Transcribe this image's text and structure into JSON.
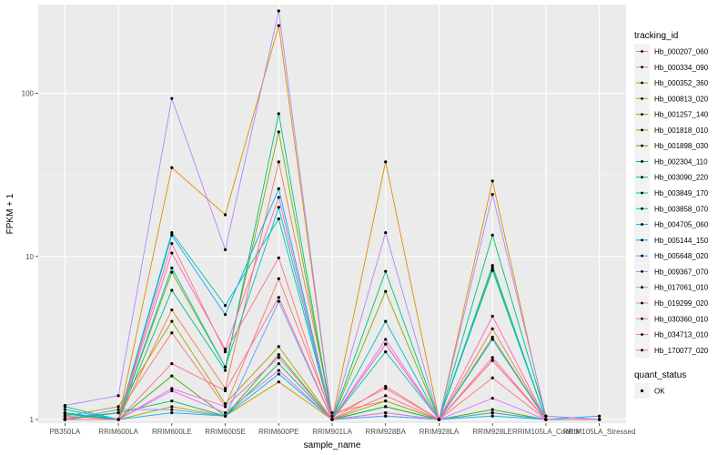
{
  "chart_data": {
    "type": "line",
    "xlabel": "sample_name",
    "ylabel": "FPKM + 1",
    "y_scale": "log10",
    "ylim": [
      0.95,
      350
    ],
    "y_ticks": [
      {
        "value": 1,
        "label": "1"
      },
      {
        "value": 10,
        "label": "10"
      },
      {
        "value": 100,
        "label": "100"
      }
    ],
    "categories": [
      "PB350LA",
      "RRIM600LA",
      "RRIM600LE",
      "RRIM600SE",
      "RRIM600PE",
      "RRIM901LA",
      "RRIM928BA",
      "RRIM928LA",
      "RRIM928LE",
      "RRIM105LA_Control",
      "RRIM105LA_Stressed"
    ],
    "legend": {
      "title": "tracking_id",
      "position": "right"
    },
    "legend2": {
      "title": "quant_status",
      "entries": [
        "OK"
      ]
    },
    "series": [
      {
        "name": "Hb_000207_060",
        "color": "#F8766D",
        "values": [
          1.02,
          1.1,
          3.4,
          1.2,
          7.3,
          1.05,
          1.55,
          1.0,
          1.8,
          1.0,
          1.0
        ]
      },
      {
        "name": "Hb_000334_090",
        "color": "#EE7F40",
        "values": [
          1.05,
          1.0,
          4.7,
          1.55,
          38.0,
          1.1,
          1.3,
          1.0,
          3.6,
          1.0,
          1.0
        ]
      },
      {
        "name": "Hb_000352_360",
        "color": "#E08B00",
        "values": [
          1.0,
          1.0,
          35.0,
          18.0,
          260.0,
          1.0,
          38.0,
          1.0,
          29.0,
          1.0,
          1.0
        ]
      },
      {
        "name": "Hb_000813_020",
        "color": "#C99800",
        "values": [
          1.0,
          1.0,
          1.2,
          1.05,
          1.7,
          1.0,
          1.1,
          1.0,
          1.1,
          1.0,
          1.0
        ]
      },
      {
        "name": "Hb_001257_140",
        "color": "#A3A500",
        "values": [
          1.05,
          1.2,
          4.0,
          1.25,
          2.8,
          1.0,
          1.3,
          1.0,
          3.2,
          1.0,
          1.0
        ]
      },
      {
        "name": "Hb_001818_010",
        "color": "#7CAE00",
        "values": [
          1.0,
          1.0,
          8.0,
          2.1,
          58.0,
          1.0,
          6.1,
          1.0,
          8.5,
          1.0,
          1.0
        ]
      },
      {
        "name": "Hb_001898_030",
        "color": "#39B600",
        "values": [
          1.1,
          1.0,
          1.85,
          1.05,
          2.5,
          1.0,
          1.2,
          1.0,
          1.15,
          1.0,
          1.0
        ]
      },
      {
        "name": "Hb_002304_110",
        "color": "#00BB4E",
        "values": [
          1.0,
          1.1,
          1.3,
          1.05,
          2.2,
          1.0,
          1.2,
          1.0,
          1.1,
          1.0,
          1.0
        ]
      },
      {
        "name": "Hb_003090_220",
        "color": "#00BF7D",
        "values": [
          1.08,
          1.0,
          6.2,
          2.0,
          75.0,
          1.0,
          8.1,
          1.0,
          13.5,
          1.05,
          1.0
        ]
      },
      {
        "name": "Hb_003849_170",
        "color": "#00C1A3",
        "values": [
          1.2,
          1.0,
          14.0,
          5.0,
          17.0,
          1.0,
          2.6,
          1.0,
          8.2,
          1.0,
          1.0
        ]
      },
      {
        "name": "Hb_003858_070",
        "color": "#00BFC4",
        "values": [
          1.15,
          1.0,
          8.5,
          2.1,
          20.0,
          1.0,
          4.0,
          1.0,
          8.8,
          1.0,
          1.0
        ]
      },
      {
        "name": "Hb_004705_060",
        "color": "#00B8E7",
        "values": [
          1.0,
          1.0,
          1.1,
          1.05,
          1.9,
          1.0,
          1.05,
          1.0,
          1.05,
          1.0,
          1.0
        ]
      },
      {
        "name": "Hb_005144_150",
        "color": "#00A9FF",
        "values": [
          1.1,
          1.0,
          13.5,
          4.4,
          26.0,
          1.0,
          2.9,
          1.0,
          3.1,
          1.0,
          1.05
        ]
      },
      {
        "name": "Hb_005648_020",
        "color": "#619CFF",
        "values": [
          1.0,
          1.15,
          1.15,
          1.05,
          5.3,
          1.0,
          1.05,
          1.0,
          1.1,
          1.0,
          1.0
        ]
      },
      {
        "name": "Hb_009367_070",
        "color": "#AE87FF",
        "values": [
          1.22,
          1.4,
          93.0,
          11.0,
          320.0,
          1.0,
          14.0,
          1.0,
          24.0,
          1.05,
          1.0
        ]
      },
      {
        "name": "Hb_017061_010",
        "color": "#DB72FB",
        "values": [
          1.0,
          1.0,
          1.5,
          1.1,
          2.0,
          1.0,
          1.1,
          1.0,
          1.35,
          1.0,
          1.0
        ]
      },
      {
        "name": "Hb_019299_020",
        "color": "#F564E3",
        "values": [
          1.0,
          1.0,
          1.55,
          1.2,
          2.4,
          1.0,
          3.1,
          1.0,
          2.3,
          1.0,
          1.0
        ]
      },
      {
        "name": "Hb_030360_010",
        "color": "#FF61C3",
        "values": [
          1.0,
          1.0,
          10.5,
          2.7,
          23.0,
          1.0,
          2.9,
          1.0,
          4.3,
          1.0,
          1.0
        ]
      },
      {
        "name": "Hb_034713_010",
        "color": "#FF6C91",
        "values": [
          1.0,
          1.0,
          2.2,
          1.5,
          5.6,
          1.0,
          1.4,
          1.0,
          2.4,
          1.0,
          1.0
        ]
      },
      {
        "name": "Hb_170077_020",
        "color": "#FD7082",
        "values": [
          1.0,
          1.0,
          12.0,
          2.6,
          9.8,
          1.0,
          1.6,
          1.0,
          2.3,
          1.0,
          1.0
        ]
      }
    ]
  }
}
